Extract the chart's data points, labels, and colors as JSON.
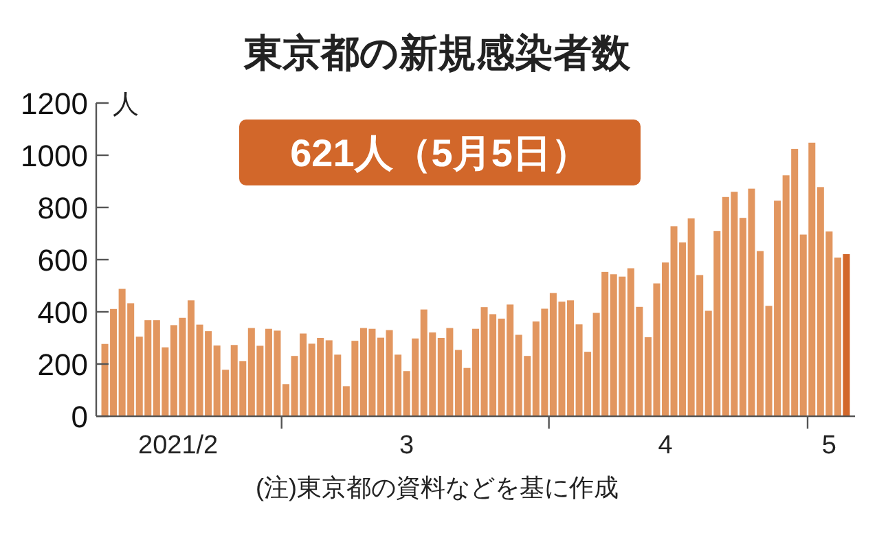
{
  "chart_data": {
    "type": "bar",
    "title": "東京都の新規感染者数",
    "ylabel": "人",
    "annotations": [
      "621人（5月5日）",
      "(注)東京都の資料などを基に作成"
    ],
    "x": [
      "2021-02-08",
      "2021-02-09",
      "2021-02-10",
      "2021-02-11",
      "2021-02-12",
      "2021-02-13",
      "2021-02-14",
      "2021-02-15",
      "2021-02-16",
      "2021-02-17",
      "2021-02-18",
      "2021-02-19",
      "2021-02-20",
      "2021-02-21",
      "2021-02-22",
      "2021-02-23",
      "2021-02-24",
      "2021-02-25",
      "2021-02-26",
      "2021-02-27",
      "2021-02-28",
      "2021-03-01",
      "2021-03-02",
      "2021-03-03",
      "2021-03-04",
      "2021-03-05",
      "2021-03-06",
      "2021-03-07",
      "2021-03-08",
      "2021-03-09",
      "2021-03-10",
      "2021-03-11",
      "2021-03-12",
      "2021-03-13",
      "2021-03-14",
      "2021-03-15",
      "2021-03-16",
      "2021-03-17",
      "2021-03-18",
      "2021-03-19",
      "2021-03-20",
      "2021-03-21",
      "2021-03-22",
      "2021-03-23",
      "2021-03-24",
      "2021-03-25",
      "2021-03-26",
      "2021-03-27",
      "2021-03-28",
      "2021-03-29",
      "2021-03-30",
      "2021-03-31",
      "2021-04-01",
      "2021-04-02",
      "2021-04-03",
      "2021-04-04",
      "2021-04-05",
      "2021-04-06",
      "2021-04-07",
      "2021-04-08",
      "2021-04-09",
      "2021-04-10",
      "2021-04-11",
      "2021-04-12",
      "2021-04-13",
      "2021-04-14",
      "2021-04-15",
      "2021-04-16",
      "2021-04-17",
      "2021-04-18",
      "2021-04-19",
      "2021-04-20",
      "2021-04-21",
      "2021-04-22",
      "2021-04-23",
      "2021-04-24",
      "2021-04-25",
      "2021-04-26",
      "2021-04-27",
      "2021-04-28",
      "2021-04-29",
      "2021-04-30",
      "2021-05-01",
      "2021-05-02",
      "2021-05-03",
      "2021-05-04",
      "2021-05-05"
    ],
    "values": [
      277,
      411,
      488,
      433,
      305,
      368,
      368,
      264,
      349,
      377,
      444,
      351,
      326,
      271,
      178,
      273,
      211,
      338,
      270,
      335,
      328,
      123,
      231,
      317,
      278,
      300,
      291,
      236,
      115,
      289,
      338,
      335,
      301,
      330,
      236,
      173,
      298,
      409,
      321,
      300,
      338,
      254,
      185,
      335,
      418,
      391,
      374,
      428,
      312,
      231,
      363,
      412,
      472,
      439,
      444,
      352,
      247,
      396,
      553,
      544,
      535,
      567,
      419,
      303,
      509,
      589,
      728,
      666,
      758,
      541,
      404,
      710,
      840,
      860,
      760,
      872,
      633,
      423,
      826,
      923,
      1024,
      696,
      1048,
      878,
      708,
      608,
      621
    ],
    "colors": [
      "#e2965f",
      "#e2965f",
      "#e2965f",
      "#e2965f",
      "#e2965f",
      "#e2965f",
      "#e2965f",
      "#e2965f",
      "#e2965f",
      "#e2965f",
      "#e2965f",
      "#e2965f",
      "#e2965f",
      "#e2965f",
      "#e2965f",
      "#e2965f",
      "#e2965f",
      "#e2965f",
      "#e2965f",
      "#e2965f",
      "#e2965f",
      "#e2965f",
      "#e2965f",
      "#e2965f",
      "#e2965f",
      "#e2965f",
      "#e2965f",
      "#e2965f",
      "#e2965f",
      "#e2965f",
      "#e2965f",
      "#e2965f",
      "#e2965f",
      "#e2965f",
      "#e2965f",
      "#e2965f",
      "#e2965f",
      "#e2965f",
      "#e2965f",
      "#e2965f",
      "#e2965f",
      "#e2965f",
      "#e2965f",
      "#e2965f",
      "#e2965f",
      "#e2965f",
      "#e2965f",
      "#e2965f",
      "#e2965f",
      "#e2965f",
      "#e2965f",
      "#e2965f",
      "#e2965f",
      "#e2965f",
      "#e2965f",
      "#e2965f",
      "#e2965f",
      "#e2965f",
      "#e2965f",
      "#e2965f",
      "#e2965f",
      "#e2965f",
      "#e2965f",
      "#e2965f",
      "#e2965f",
      "#e2965f",
      "#e2965f",
      "#e2965f",
      "#e2965f",
      "#e2965f",
      "#e2965f",
      "#e2965f",
      "#e2965f",
      "#e2965f",
      "#e2965f",
      "#e2965f",
      "#e2965f",
      "#e2965f",
      "#e2965f",
      "#e2965f",
      "#e2965f",
      "#e2965f",
      "#e2965f",
      "#e2965f",
      "#e2965f",
      "#e2965f",
      "#d2672a"
    ],
    "xlim": [
      "2021-02-07",
      "2021-05-06"
    ],
    "xticks": [
      {
        "value": "2021-02-16T12:00",
        "label": "2021/2"
      },
      {
        "value": "2021-02-28T12:00",
        "label": null
      },
      {
        "value": "2021-03-15",
        "label": "3"
      },
      {
        "value": "2021-03-31T12:00",
        "label": null
      },
      {
        "value": "2021-04-14",
        "label": "4"
      },
      {
        "value": "2021-04-30T12:00",
        "label": null
      },
      {
        "value": "2021-05-03",
        "label": "5"
      }
    ],
    "ylim": [
      0,
      1200
    ],
    "yticks": [
      0,
      200,
      400,
      600,
      800,
      1000,
      1200
    ],
    "grid": false
  }
}
